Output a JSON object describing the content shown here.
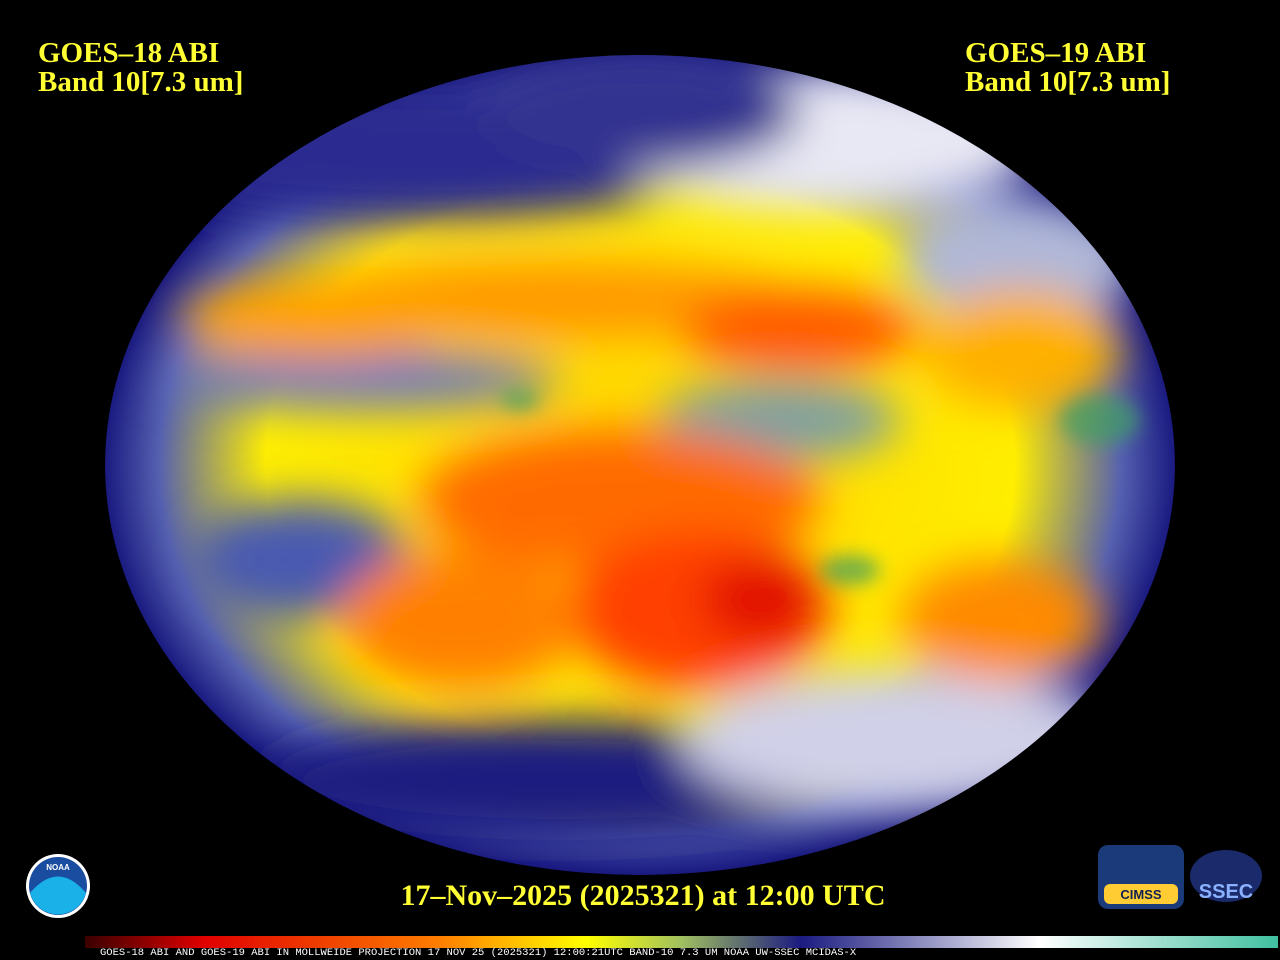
{
  "header": {
    "left": {
      "line1": "GOES–18 ABI",
      "line2": "Band 10[7.3 um]"
    },
    "right": {
      "line1": "GOES–19 ABI",
      "line2": "Band 10[7.3 um]"
    }
  },
  "timestamp": "17–Nov–2025 (2025321) at 12:00 UTC",
  "footer": "GOES-18 ABI AND GOES-19 ABI IN MOLLWEIDE PROJECTION 17 NOV 25 (2025321) 12:00:21UTC BAND-10 7.3 UM NOAA UW-SSEC MCIDAS-X",
  "logos": {
    "noaa": "NOAA",
    "cimss": "CIMSS",
    "ssec": "SSEC"
  }
}
